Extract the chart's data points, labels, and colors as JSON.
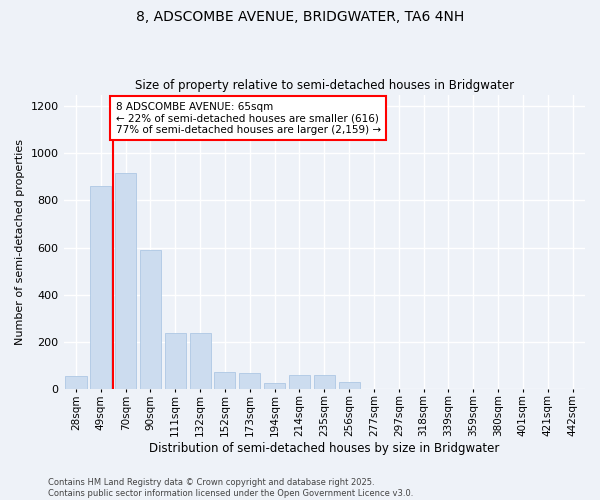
{
  "title": "8, ADSCOMBE AVENUE, BRIDGWATER, TA6 4NH",
  "subtitle": "Size of property relative to semi-detached houses in Bridgwater",
  "xlabel": "Distribution of semi-detached houses by size in Bridgwater",
  "ylabel": "Number of semi-detached properties",
  "categories": [
    "28sqm",
    "49sqm",
    "70sqm",
    "90sqm",
    "111sqm",
    "132sqm",
    "152sqm",
    "173sqm",
    "194sqm",
    "214sqm",
    "235sqm",
    "256sqm",
    "277sqm",
    "297sqm",
    "318sqm",
    "339sqm",
    "359sqm",
    "380sqm",
    "401sqm",
    "421sqm",
    "442sqm"
  ],
  "values": [
    55,
    860,
    915,
    590,
    235,
    235,
    70,
    65,
    25,
    60,
    60,
    30,
    0,
    0,
    0,
    0,
    0,
    0,
    0,
    0,
    0
  ],
  "bar_color": "#ccdcef",
  "bar_edge_color": "#aec8e4",
  "property_line_x": 1.5,
  "annotation_line1": "8 ADSCOMBE AVENUE: 65sqm",
  "annotation_line2": "← 22% of semi-detached houses are smaller (616)",
  "annotation_line3": "77% of semi-detached houses are larger (2,159) →",
  "footer1": "Contains HM Land Registry data © Crown copyright and database right 2025.",
  "footer2": "Contains public sector information licensed under the Open Government Licence v3.0.",
  "ylim": [
    0,
    1250
  ],
  "yticks": [
    0,
    200,
    400,
    600,
    800,
    1000,
    1200
  ],
  "bg_color": "#eef2f8",
  "grid_color": "#ffffff"
}
